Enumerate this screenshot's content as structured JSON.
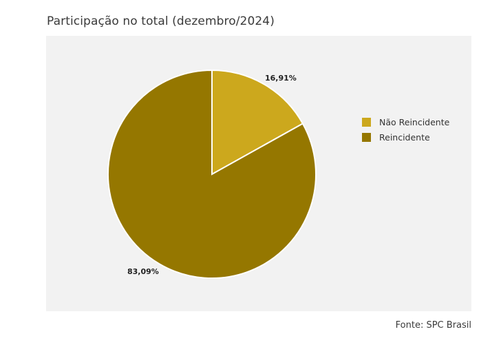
{
  "chart_data": {
    "type": "pie",
    "title": "Participação no total (dezembro/2024)",
    "source": "Fonte: SPC Brasil",
    "legend_position": "right",
    "slices": [
      {
        "label": "Não Reincidente",
        "value": 16.91,
        "display": "16,91%",
        "color": "#cca81d"
      },
      {
        "label": "Reincidente",
        "value": 83.09,
        "display": "83,09%",
        "color": "#957700"
      }
    ],
    "background": "#f2f2f2"
  }
}
